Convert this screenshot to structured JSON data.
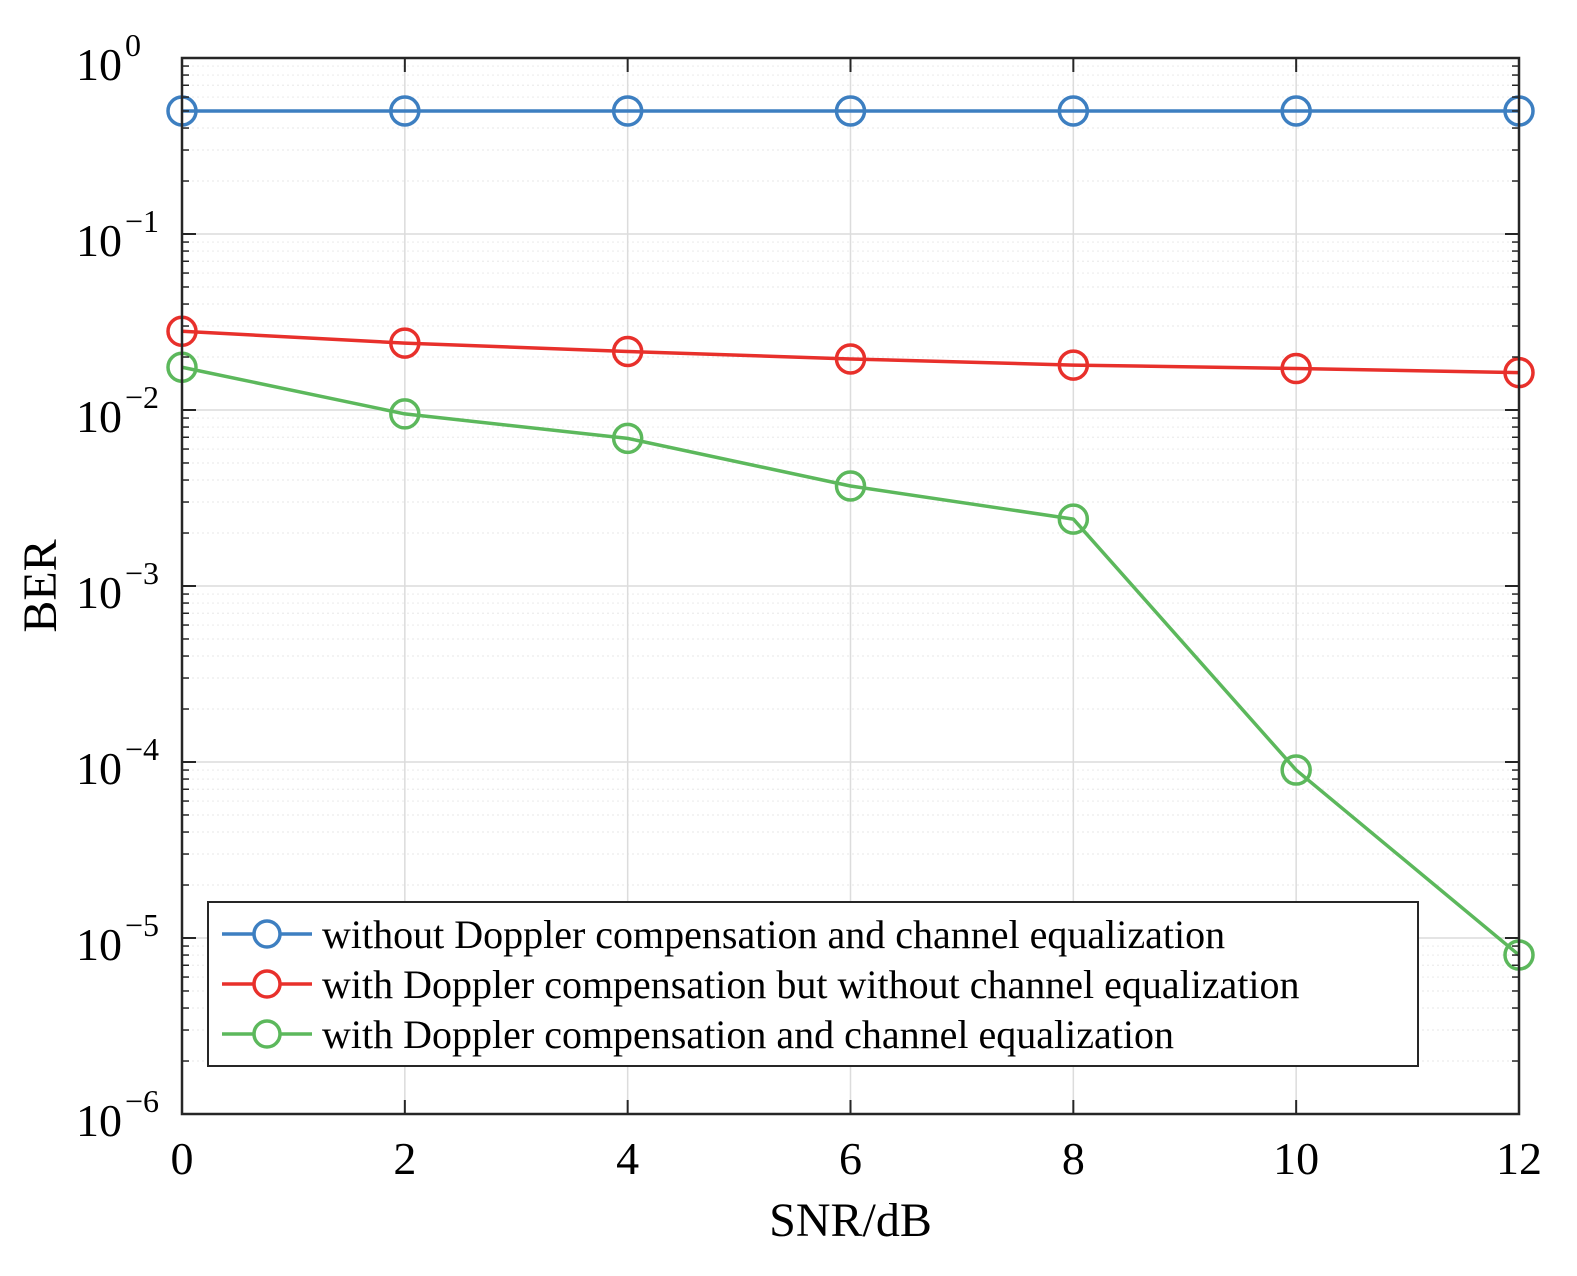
{
  "chart_data": {
    "type": "line",
    "title": "",
    "xlabel": "SNR/dB",
    "ylabel": "BER",
    "yscale": "log",
    "xlim": [
      0,
      12
    ],
    "ylim": [
      1e-06,
      1
    ],
    "grid": true,
    "legend_position": "bottom-left",
    "x": [
      0,
      2,
      4,
      6,
      8,
      10,
      12
    ],
    "x_tick_labels": [
      "0",
      "2",
      "4",
      "6",
      "8",
      "10",
      "12"
    ],
    "y_ticks": [
      {
        "base": "10",
        "exp": "0",
        "value": 1
      },
      {
        "base": "10",
        "exp": "−1",
        "value": 0.1
      },
      {
        "base": "10",
        "exp": "−2",
        "value": 0.01
      },
      {
        "base": "10",
        "exp": "−3",
        "value": 0.001
      },
      {
        "base": "10",
        "exp": "−4",
        "value": 0.0001
      },
      {
        "base": "10",
        "exp": "−5",
        "value": 1e-05
      },
      {
        "base": "10",
        "exp": "−6",
        "value": 1e-06
      }
    ],
    "series": [
      {
        "name": "without Doppler compensation and channel equalization",
        "color": "#3d7fc1",
        "marker": "circle",
        "values": [
          0.5,
          0.5,
          0.5,
          0.5,
          0.5,
          0.5,
          0.5
        ]
      },
      {
        "name": "with Doppler compensation but without channel equalization",
        "color": "#e8302b",
        "marker": "circle",
        "values": [
          0.028,
          0.024,
          0.0215,
          0.0195,
          0.018,
          0.0172,
          0.0163
        ]
      },
      {
        "name": "with Doppler compensation and channel equalization",
        "color": "#5cb85c",
        "marker": "circle",
        "values": [
          0.0175,
          0.0095,
          0.0069,
          0.0037,
          0.0024,
          9e-05,
          8e-06
        ]
      }
    ]
  }
}
